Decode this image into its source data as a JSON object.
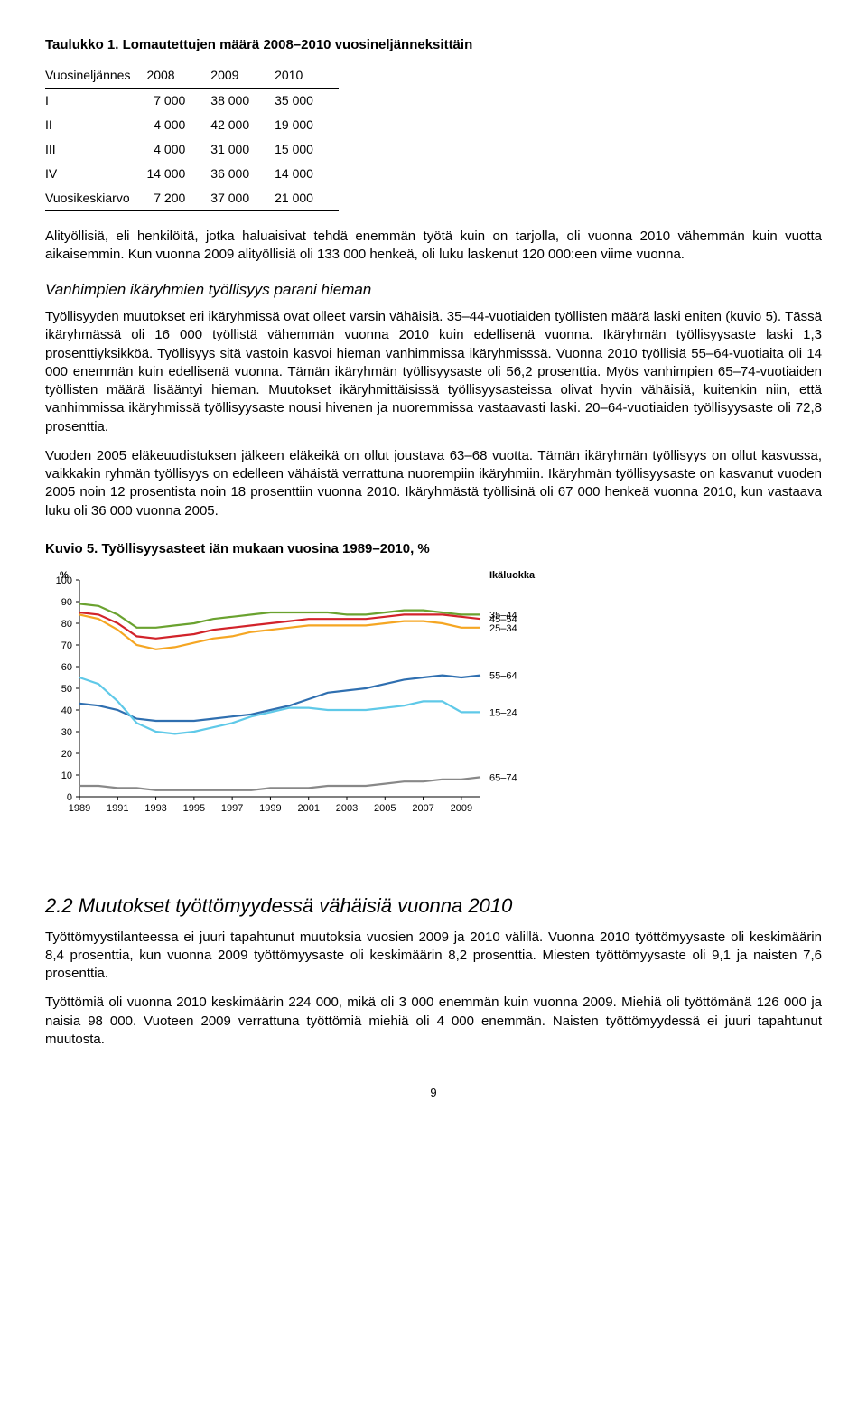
{
  "table": {
    "title": "Taulukko 1. Lomautettujen määrä 2008–2010 vuosineljänneksittäin",
    "columns": [
      "Vuosineljännes",
      "2008",
      "2009",
      "2010"
    ],
    "rows": [
      [
        "I",
        "7 000",
        "38 000",
        "35 000"
      ],
      [
        "II",
        "4 000",
        "42 000",
        "19 000"
      ],
      [
        "III",
        "4 000",
        "31 000",
        "15 000"
      ],
      [
        "IV",
        "14 000",
        "36 000",
        "14 000"
      ],
      [
        "Vuosikeskiarvo",
        "7 200",
        "37 000",
        "21 000"
      ]
    ]
  },
  "para1": "Alityöllisiä, eli henkilöitä, jotka haluaisivat tehdä enemmän työtä kuin on tarjolla, oli vuonna 2010 vähemmän kuin vuotta aikaisemmin. Kun vuonna 2009 alityöllisiä oli 133 000 henkeä, oli luku laskenut 120 000:een viime vuonna.",
  "sub1_title": "Vanhimpien ikäryhmien työllisyys parani hieman",
  "para2": "Työllisyyden muutokset eri ikäryhmissä ovat olleet varsin vähäisiä. 35–44-vuotiaiden työllisten määrä laski eniten (kuvio 5). Tässä ikäryhmässä oli 16 000 työllistä vähemmän vuonna 2010 kuin edellisenä vuonna. Ikäryhmän työllisyysaste laski 1,3 prosenttiyksikköä. Työllisyys sitä vastoin kasvoi hieman vanhimmissa ikäryhmisssä. Vuonna 2010 työllisiä 55–64-vuotiaita oli 14 000 enemmän kuin edellisenä vuonna. Tämän ikäryhmän työllisyysaste oli 56,2 prosenttia. Myös vanhimpien 65–74-vuotiaiden työllisten määrä lisääntyi hieman. Muutokset ikäryhmittäisissä työllisyysasteissa olivat hyvin vähäisiä, kuitenkin niin, että vanhimmissa ikäryhmissä työllisyysaste nousi hivenen ja nuoremmissa vastaavasti laski. 20–64-vuotiaiden työllisyysaste oli 72,8 prosenttia.",
  "para3": "Vuoden 2005 eläkeuudistuksen jälkeen eläkeikä on ollut joustava 63–68 vuotta. Tämän ikäryhmän työllisyys on ollut kasvussa, vaikkakin ryhmän työllisyys on edelleen vähäistä verrattuna nuorempiin ikäryhmiin. Ikäryhmän työllisyysaste on kasvanut vuoden 2005 noin 12 prosentista noin 18 prosenttiin vuonna 2010. Ikäryhmästä työllisinä oli 67 000 henkeä vuonna 2010, kun vastaava luku oli 36 000 vuonna 2005.",
  "chart": {
    "title": "Kuvio 5. Työllisyysasteet iän mukaan vuosina 1989–2010, %",
    "y_label": "%",
    "legend_title": "Ikäluokka",
    "ylim": [
      0,
      100
    ],
    "ytick_step": 10,
    "x_ticks": [
      "1989",
      "1991",
      "1993",
      "1995",
      "1997",
      "1999",
      "2001",
      "2003",
      "2005",
      "2007",
      "2009"
    ],
    "background_color": "#ffffff",
    "axis_color": "#000000",
    "grid_color": "#cccccc",
    "label_fontsize": 11,
    "line_width": 2.2,
    "series": [
      {
        "name": "35–44",
        "color": "#6aa22f",
        "values": [
          89,
          88,
          84,
          78,
          78,
          79,
          80,
          82,
          83,
          84,
          85,
          85,
          85,
          85,
          84,
          84,
          85,
          86,
          86,
          85,
          84,
          84
        ]
      },
      {
        "name": "45–54",
        "color": "#d2232a",
        "values": [
          85,
          84,
          80,
          74,
          73,
          74,
          75,
          77,
          78,
          79,
          80,
          81,
          82,
          82,
          82,
          82,
          83,
          84,
          84,
          84,
          83,
          82
        ]
      },
      {
        "name": "25–34",
        "color": "#f5a623",
        "values": [
          84,
          82,
          77,
          70,
          68,
          69,
          71,
          73,
          74,
          76,
          77,
          78,
          79,
          79,
          79,
          79,
          80,
          81,
          81,
          80,
          78,
          78
        ]
      },
      {
        "name": "55–64",
        "color": "#2f6fb0",
        "values": [
          43,
          42,
          40,
          36,
          35,
          35,
          35,
          36,
          37,
          38,
          40,
          42,
          45,
          48,
          49,
          50,
          52,
          54,
          55,
          56,
          55,
          56
        ]
      },
      {
        "name": "15–24",
        "color": "#5fc9e8",
        "values": [
          55,
          52,
          44,
          34,
          30,
          29,
          30,
          32,
          34,
          37,
          39,
          41,
          41,
          40,
          40,
          40,
          41,
          42,
          44,
          44,
          39,
          39
        ]
      },
      {
        "name": "65–74",
        "color": "#888888",
        "values": [
          5,
          5,
          4,
          4,
          3,
          3,
          3,
          3,
          3,
          3,
          4,
          4,
          4,
          5,
          5,
          5,
          6,
          7,
          7,
          8,
          8,
          9
        ]
      }
    ]
  },
  "section2": {
    "title": "2.2 Muutokset työttömyydessä vähäisiä vuonna 2010",
    "para1": "Työttömyystilanteessa ei juuri tapahtunut muutoksia vuosien 2009 ja 2010 välillä. Vuonna 2010 työttömyysaste oli keskimäärin 8,4 prosenttia, kun vuonna 2009 työttömyysaste oli keskimäärin 8,2 prosenttia. Miesten työttömyysaste oli 9,1 ja naisten 7,6 prosenttia.",
    "para2": "Työttömiä oli vuonna 2010 keskimäärin 224 000, mikä oli 3 000 enemmän kuin vuonna 2009. Miehiä oli työttömänä 126 000 ja naisia 98 000. Vuoteen 2009 verrattuna työttömiä miehiä oli 4 000 enemmän. Naisten työttömyydessä ei juuri tapahtunut muutosta."
  },
  "page_number": "9"
}
